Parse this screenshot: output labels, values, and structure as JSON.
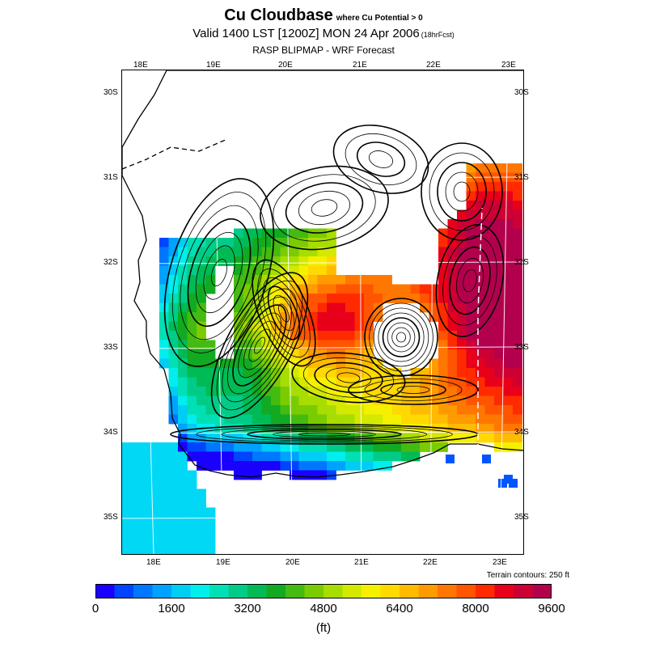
{
  "title": {
    "main": "Cu Cloudbase",
    "qualifier": "where Cu Potential > 0",
    "valid": "Valid 1400 LST [1200Z] MON 24 Apr 2006",
    "forecast": "(18hrFcst)",
    "model": "RASP BLIPMAP - WRF Forecast"
  },
  "map": {
    "lon_labels_top": [
      "18E",
      "19E",
      "20E",
      "21E",
      "22E",
      "23E"
    ],
    "lon_labels_bottom": [
      "18E",
      "19E",
      "20E",
      "21E",
      "22E",
      "23E"
    ],
    "lat_labels_left": [
      "30S",
      "31S",
      "32S",
      "33S",
      "34S",
      "35S"
    ],
    "lat_labels_right": [
      "30S",
      "31S",
      "32S",
      "33S",
      "34S",
      "35S"
    ],
    "terrain_note": "Terrain contours: 250 ft"
  },
  "colorbar": {
    "labels": [
      "0",
      "1600",
      "3200",
      "4800",
      "6400",
      "8000",
      "9600"
    ],
    "units": "(ft)",
    "colors": [
      "#1a00ff",
      "#0044ff",
      "#0077ff",
      "#00a2ff",
      "#00cdf5",
      "#00eeee",
      "#00e0b4",
      "#00cc88",
      "#00bb55",
      "#11aa22",
      "#44bb11",
      "#7acc00",
      "#a8dd00",
      "#d4e800",
      "#f5f000",
      "#ffd900",
      "#ffbb00",
      "#ff9a00",
      "#ff7700",
      "#ff5500",
      "#ff2a00",
      "#e8001a",
      "#cc0033",
      "#b3004d"
    ]
  }
}
